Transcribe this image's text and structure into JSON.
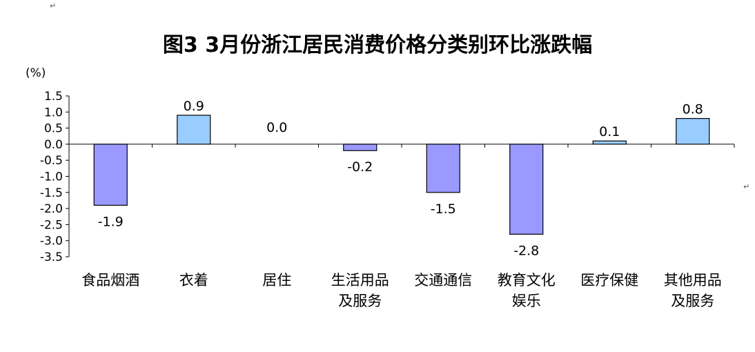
{
  "chart_data": {
    "type": "bar",
    "title": "图3 3月份浙江居民消费价格分类别环比涨跌幅",
    "unit_label": "(%)",
    "categories": [
      [
        "食品烟酒"
      ],
      [
        "衣着"
      ],
      [
        "居住"
      ],
      [
        "生活用品",
        "及服务"
      ],
      [
        "交通通信"
      ],
      [
        "教育文化",
        "娱乐"
      ],
      [
        "医疗保健"
      ],
      [
        "其他用品",
        "及服务"
      ]
    ],
    "values": [
      -1.9,
      0.9,
      0.0,
      -0.2,
      -1.5,
      -2.8,
      0.1,
      0.8
    ],
    "value_labels": [
      "-1.9",
      "0.9",
      "0.0",
      "-0.2",
      "-1.5",
      "-2.8",
      "0.1",
      "0.8"
    ],
    "ylim": [
      -3.5,
      1.5
    ],
    "yticks": [
      1.5,
      1.0,
      0.5,
      0.0,
      -0.5,
      -1.0,
      -1.5,
      -2.0,
      -2.5,
      -3.0,
      -3.5
    ],
    "ytick_labels": [
      "1.5",
      "1.0",
      "0.5",
      "0.0",
      "-0.5",
      "-1.0",
      "-1.5",
      "-2.0",
      "-2.5",
      "-3.0",
      "-3.5"
    ],
    "grid": false,
    "colors": {
      "positive": "#99CCFF",
      "negative": "#9999FF",
      "bar_stroke": "#000000",
      "axis": "#000000"
    }
  }
}
